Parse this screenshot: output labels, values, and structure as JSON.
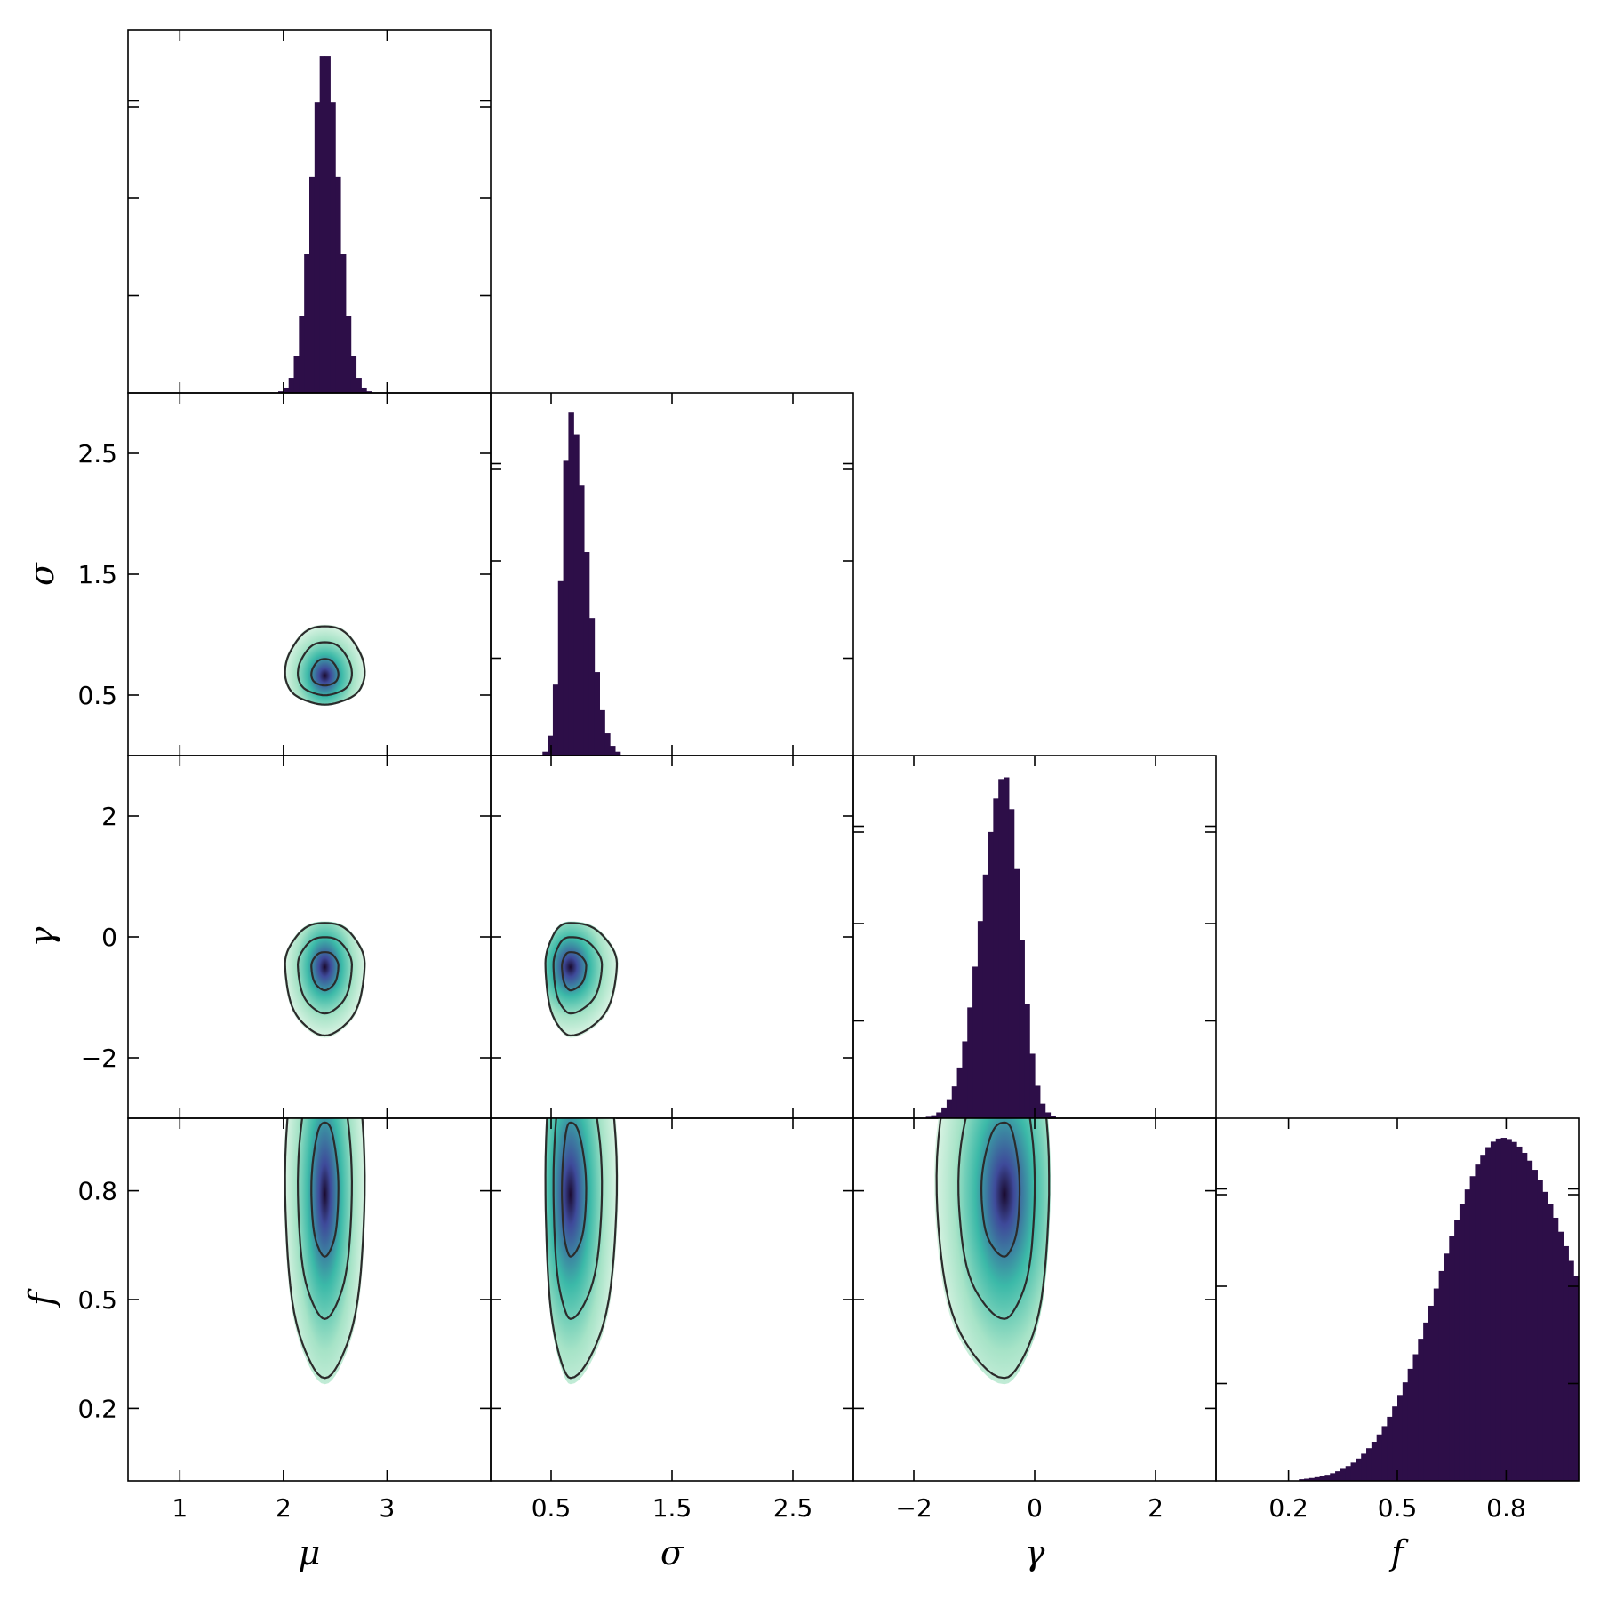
{
  "chart_data": {
    "type": "corner",
    "parameters": [
      {
        "key": "mu",
        "label": "μ",
        "range": [
          0.5,
          4.0
        ],
        "ticks": [
          1,
          2,
          3
        ],
        "tick_labels": [
          "1",
          "2",
          "3"
        ]
      },
      {
        "key": "sigma",
        "label": "σ",
        "range": [
          0.0,
          3.0
        ],
        "ticks": [
          0.5,
          1.5,
          2.5
        ],
        "tick_labels": [
          "0.5",
          "1.5",
          "2.5"
        ]
      },
      {
        "key": "gamma",
        "label": "γ",
        "range": [
          -3.0,
          3.0
        ],
        "ticks": [
          -2,
          0,
          2
        ],
        "tick_labels": [
          "−2",
          "0",
          "2"
        ]
      },
      {
        "key": "f",
        "label": "f",
        "range": [
          0.0,
          1.0
        ],
        "ticks": [
          0.2,
          0.5,
          0.8
        ],
        "tick_labels": [
          "0.2",
          "0.5",
          "0.8"
        ]
      }
    ],
    "marginals": [
      {
        "param": "mu",
        "shape": "gaussian",
        "mean": 2.4,
        "sd": 0.13,
        "skew": 0
      },
      {
        "param": "sigma",
        "shape": "skewed",
        "mean": 0.66,
        "sd_left": 0.07,
        "sd_right": 0.13
      },
      {
        "param": "gamma",
        "shape": "skewed",
        "mean": -0.5,
        "sd_left": 0.38,
        "sd_right": 0.25
      },
      {
        "param": "f",
        "shape": "broad",
        "mean": 0.79,
        "sd_left": 0.17,
        "sd_right": 0.2
      }
    ],
    "joint_contours": [
      {
        "x": "mu",
        "y": "sigma",
        "center": [
          2.4,
          0.66
        ],
        "sx": [
          0.13,
          0.13
        ],
        "sy": [
          0.08,
          0.14
        ]
      },
      {
        "x": "mu",
        "y": "gamma",
        "center": [
          2.4,
          -0.5
        ],
        "sx": [
          0.13,
          0.13
        ],
        "sy": [
          0.38,
          0.25
        ]
      },
      {
        "x": "sigma",
        "y": "gamma",
        "center": [
          0.66,
          -0.5
        ],
        "sx": [
          0.07,
          0.13
        ],
        "sy": [
          0.38,
          0.25
        ]
      },
      {
        "x": "mu",
        "y": "f",
        "center": [
          2.4,
          0.79
        ],
        "sx": [
          0.13,
          0.13
        ],
        "sy": [
          0.17,
          0.2
        ]
      },
      {
        "x": "sigma",
        "y": "f",
        "center": [
          0.66,
          0.79
        ],
        "sx": [
          0.07,
          0.13
        ],
        "sy": [
          0.17,
          0.2
        ]
      },
      {
        "x": "gamma",
        "y": "f",
        "center": [
          -0.5,
          0.79
        ],
        "sx": [
          0.38,
          0.25
        ],
        "sy": [
          0.17,
          0.2
        ]
      }
    ],
    "contour_levels_sigma": [
      1,
      2,
      3
    ],
    "colors": {
      "histogram": "#2d0e48",
      "contour_line": "#2b2b2b",
      "density_low": "#d9f3e3",
      "density_mid": "#3bb9a8",
      "density_high": "#3e4a9a",
      "density_peak": "#1a0a2e"
    }
  }
}
